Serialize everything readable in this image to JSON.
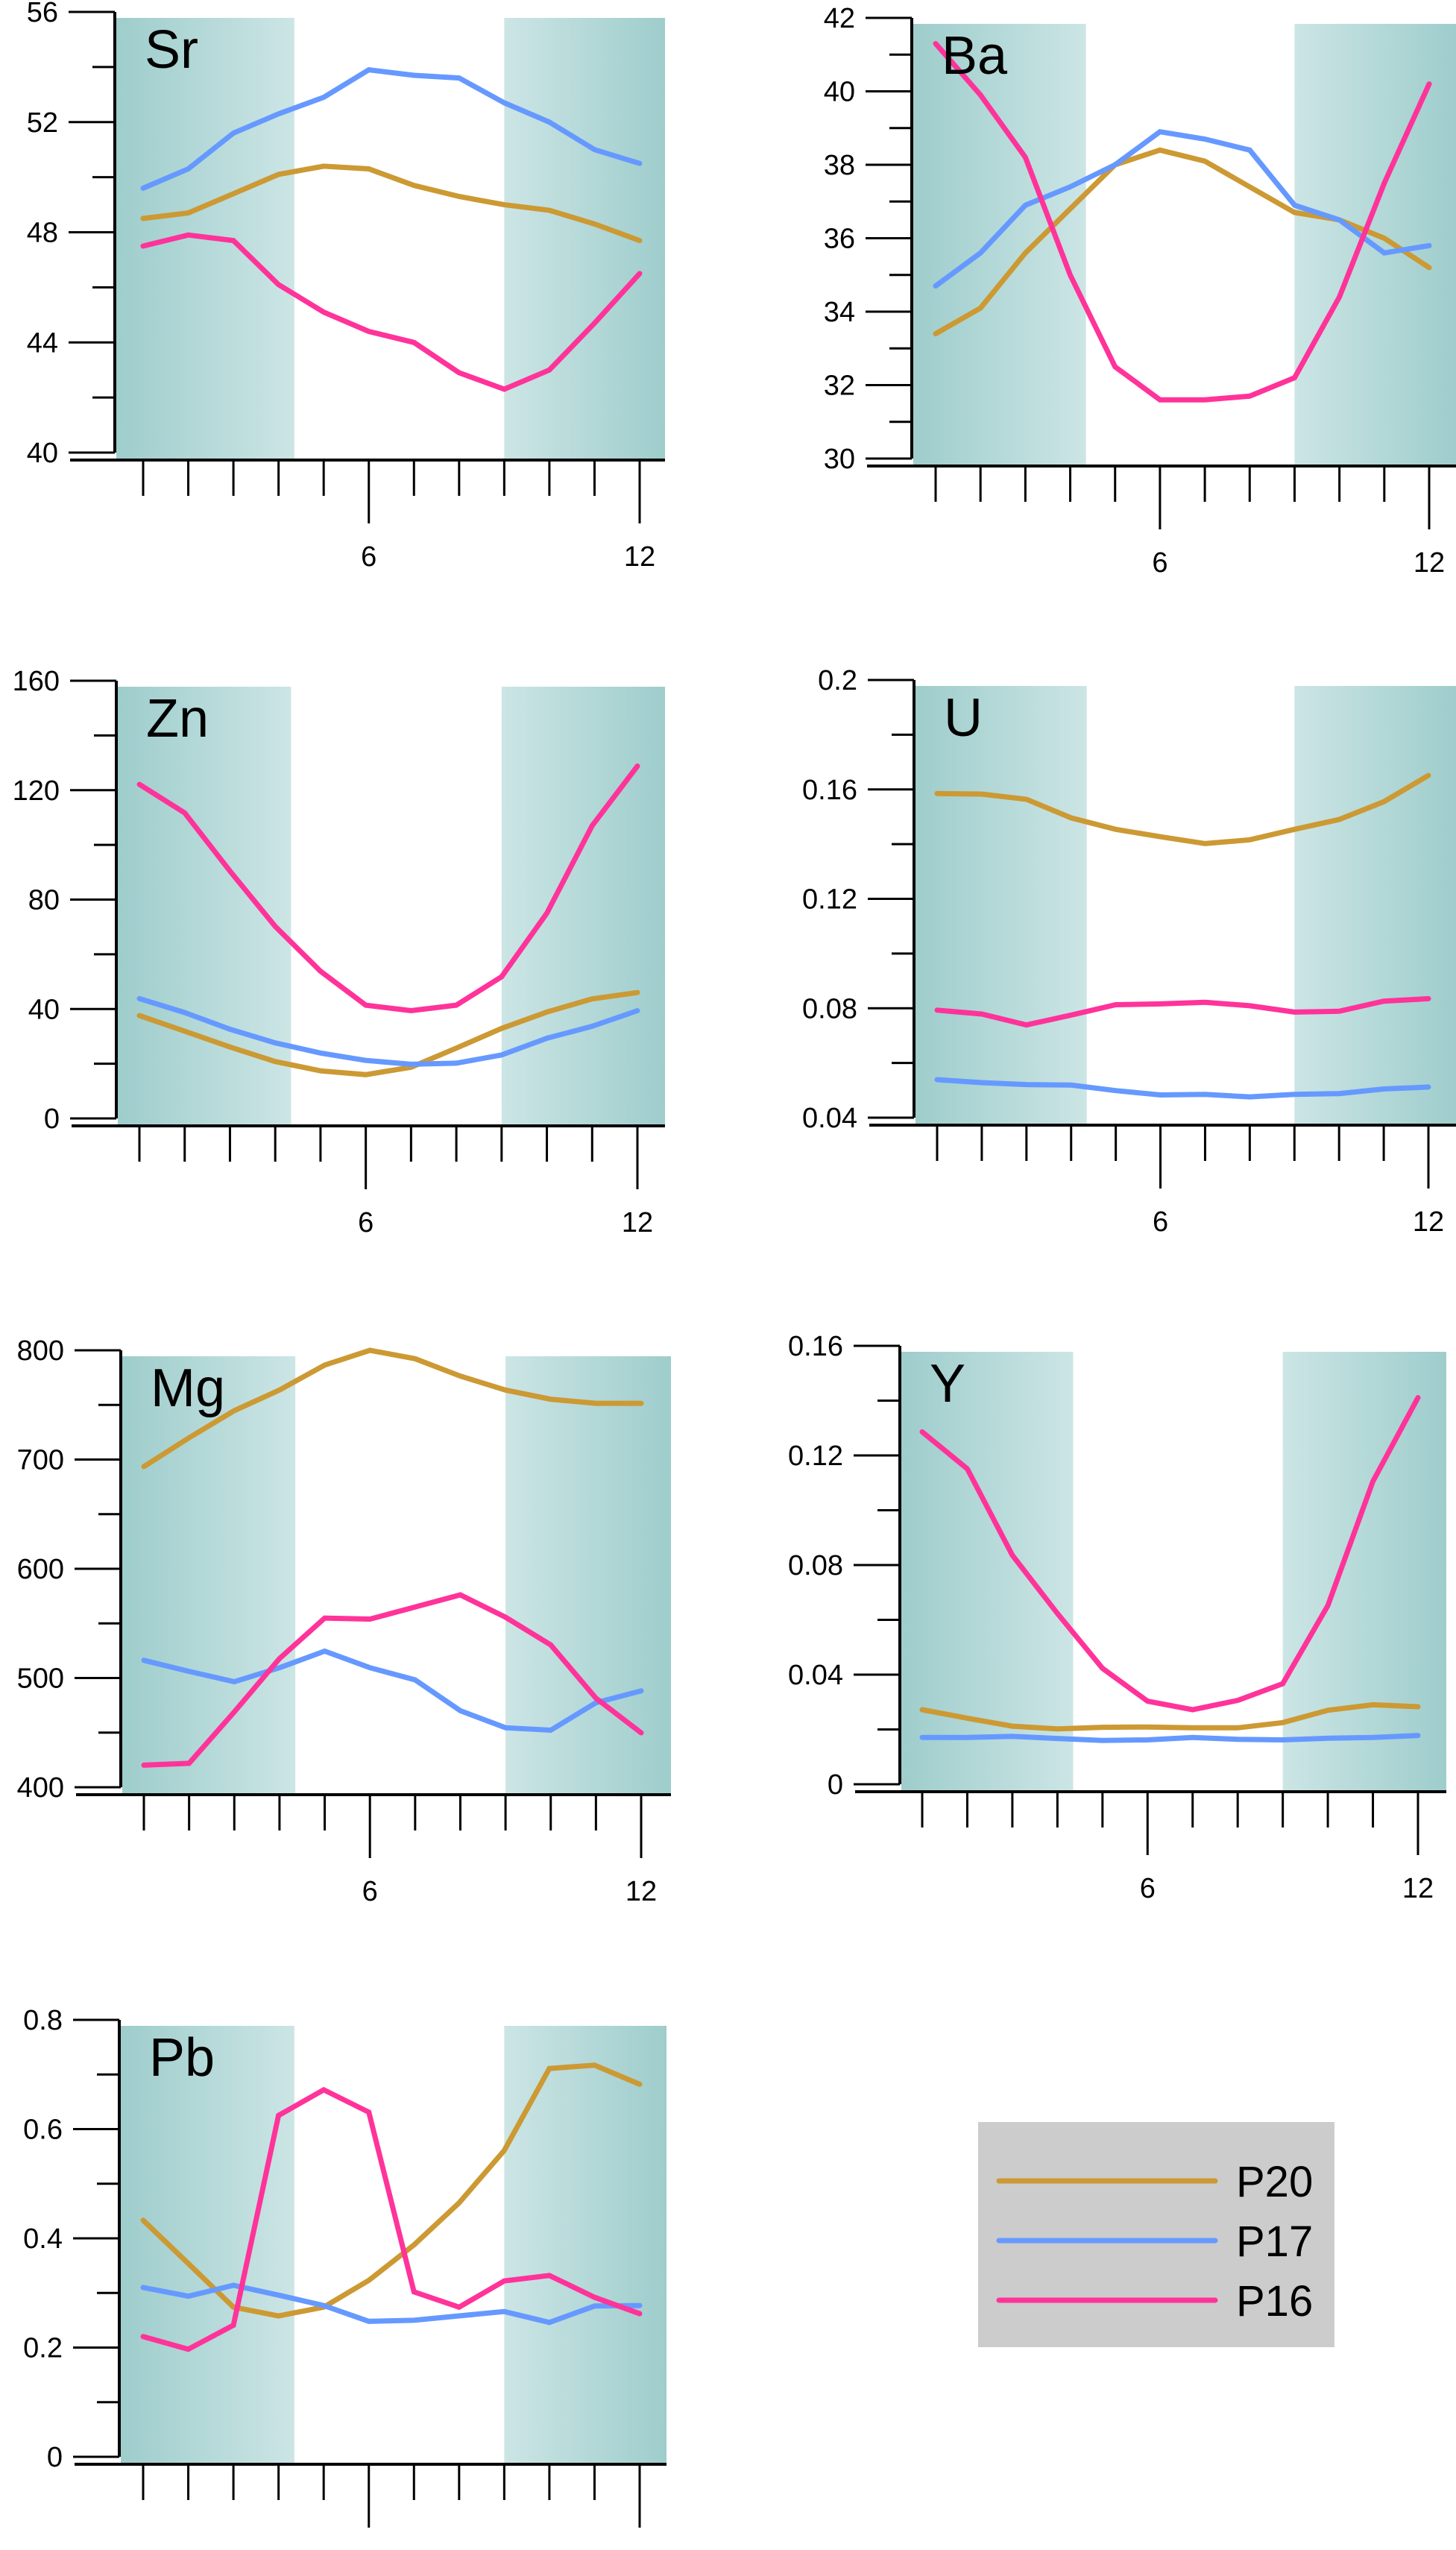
{
  "chart_data": {
    "type": "line",
    "x": [
      1,
      2,
      3,
      4,
      5,
      6,
      7,
      8,
      9,
      10,
      11,
      12
    ],
    "xticks": [
      {
        "value": 6,
        "label": "6"
      },
      {
        "value": 12,
        "label": "12"
      }
    ],
    "shaded_x_ranges": [
      [
        0.6,
        4.35
      ],
      [
        9.0,
        12.5
      ]
    ],
    "legend": {
      "position": "bottom-right",
      "entries": [
        {
          "name": "P20",
          "color": "#CC9933"
        },
        {
          "name": "P17",
          "color": "#6699FF"
        },
        {
          "name": "P16",
          "color": "#FF3399"
        }
      ]
    },
    "panels": [
      {
        "title": "Sr",
        "ylim": [
          40,
          56
        ],
        "yticks": [
          40,
          44,
          48,
          52,
          56
        ],
        "ytick_labels": [
          "40",
          "44",
          "48",
          "52",
          "56"
        ],
        "minor_step": 2,
        "series": [
          {
            "name": "P20",
            "values": [
              48.5,
              48.7,
              49.4,
              50.1,
              50.4,
              50.3,
              49.7,
              49.3,
              49.0,
              48.8,
              48.3,
              47.7
            ]
          },
          {
            "name": "P17",
            "values": [
              49.6,
              50.3,
              51.6,
              52.3,
              52.9,
              53.9,
              53.7,
              53.6,
              52.7,
              52.0,
              51.0,
              50.5
            ]
          },
          {
            "name": "P16",
            "values": [
              47.5,
              47.9,
              47.7,
              46.1,
              45.1,
              44.4,
              44.0,
              42.9,
              42.3,
              43.0,
              44.7,
              46.5
            ]
          }
        ]
      },
      {
        "title": "Ba",
        "ylim": [
          30,
          42
        ],
        "yticks": [
          30,
          32,
          34,
          36,
          38,
          40,
          42
        ],
        "ytick_labels": [
          "30",
          "32",
          "34",
          "36",
          "38",
          "40",
          "42"
        ],
        "minor_step": 1,
        "series": [
          {
            "name": "P20",
            "values": [
              33.4,
              34.1,
              35.6,
              36.8,
              38.0,
              38.4,
              38.1,
              37.4,
              36.7,
              36.5,
              36.0,
              35.2
            ]
          },
          {
            "name": "P17",
            "values": [
              34.7,
              35.6,
              36.9,
              37.4,
              38.0,
              38.9,
              38.7,
              38.4,
              36.9,
              36.5,
              35.6,
              35.8
            ]
          },
          {
            "name": "P16",
            "values": [
              41.3,
              39.9,
              38.2,
              35.0,
              32.5,
              31.6,
              31.6,
              31.7,
              32.2,
              34.4,
              37.5,
              40.2
            ]
          }
        ]
      },
      {
        "title": "Zn",
        "ylim": [
          0,
          160
        ],
        "yticks": [
          0,
          40,
          80,
          120,
          160
        ],
        "ytick_labels": [
          "0",
          "40",
          "80",
          "120",
          "160"
        ],
        "minor_step": 20,
        "series": [
          {
            "name": "P20",
            "values": [
              37.6,
              31.9,
              26.1,
              20.8,
              17.4,
              16.0,
              18.7,
              25.7,
              32.9,
              38.9,
              43.7,
              46.0
            ]
          },
          {
            "name": "P17",
            "values": [
              43.8,
              38.7,
              32.6,
              27.6,
              23.9,
              21.2,
              19.8,
              20.2,
              23.2,
              29.3,
              33.7,
              39.4
            ]
          },
          {
            "name": "P16",
            "values": [
              122.1,
              111.7,
              90.4,
              70.2,
              53.8,
              41.4,
              39.4,
              41.4,
              51.8,
              75.0,
              107.0,
              128.8
            ]
          }
        ]
      },
      {
        "title": "U",
        "ylim": [
          0.04,
          0.2
        ],
        "yticks": [
          0.04,
          0.08,
          0.12,
          0.16,
          0.2
        ],
        "ytick_labels": [
          "0.04",
          "0.08",
          "0.12",
          "0.16",
          "0.2"
        ],
        "minor_step": 0.02,
        "series": [
          {
            "name": "P20",
            "values": [
              0.1585,
              0.1583,
              0.1564,
              0.1496,
              0.1454,
              0.1427,
              0.1402,
              0.1416,
              0.1454,
              0.149,
              0.1555,
              0.1651
            ]
          },
          {
            "name": "P17",
            "values": [
              0.0539,
              0.0528,
              0.0521,
              0.0519,
              0.0499,
              0.0483,
              0.0485,
              0.0476,
              0.0485,
              0.0488,
              0.0505,
              0.0512
            ]
          },
          {
            "name": "P16",
            "values": [
              0.0793,
              0.0779,
              0.0739,
              0.0775,
              0.0813,
              0.0816,
              0.0822,
              0.0809,
              0.0786,
              0.0789,
              0.0826,
              0.0835
            ]
          }
        ]
      },
      {
        "title": "Mg",
        "ylim": [
          400,
          800
        ],
        "yticks": [
          400,
          500,
          600,
          700,
          800
        ],
        "ytick_labels": [
          "400",
          "500",
          "600",
          "700",
          "800"
        ],
        "minor_step": 50,
        "series": [
          {
            "name": "P20",
            "values": [
              693.6,
              719.9,
              744.8,
              763.6,
              786.5,
              800.0,
              792.3,
              776.4,
              763.6,
              755.2,
              751.5,
              751.5
            ]
          },
          {
            "name": "P17",
            "values": [
              516.2,
              506.1,
              496.6,
              509.4,
              524.6,
              509.4,
              498.3,
              470.0,
              454.5,
              452.2,
              477.4,
              488.2
            ]
          },
          {
            "name": "P16",
            "values": [
              420.2,
              421.9,
              469.0,
              517.8,
              554.9,
              553.9,
              565.0,
              576.1,
              555.6,
              530.3,
              481.5,
              449.8
            ]
          }
        ]
      },
      {
        "title": "Y",
        "ylim": [
          0,
          0.16
        ],
        "yticks": [
          0,
          0.04,
          0.08,
          0.12,
          0.16
        ],
        "ytick_labels": [
          "0",
          "0.04",
          "0.08",
          "0.12",
          "0.16"
        ],
        "minor_step": 0.02,
        "series": [
          {
            "name": "P20",
            "values": [
              0.0272,
              0.0241,
              0.0212,
              0.0202,
              0.0208,
              0.0209,
              0.0206,
              0.0206,
              0.0225,
              0.027,
              0.029,
              0.0283
            ]
          },
          {
            "name": "P17",
            "values": [
              0.0171,
              0.0171,
              0.0175,
              0.0167,
              0.016,
              0.0162,
              0.0171,
              0.0164,
              0.0162,
              0.0168,
              0.0171,
              0.0178
            ]
          },
          {
            "name": "P16",
            "values": [
              0.1286,
              0.1151,
              0.0836,
              0.0623,
              0.0423,
              0.0303,
              0.0272,
              0.0306,
              0.0367,
              0.0652,
              0.1105,
              0.1411
            ]
          }
        ]
      },
      {
        "title": "Pb",
        "ylim": [
          0,
          0.8
        ],
        "yticks": [
          0,
          0.2,
          0.4,
          0.6,
          0.8
        ],
        "ytick_labels": [
          "0",
          "0.2",
          "0.4",
          "0.6",
          "0.8"
        ],
        "minor_step": 0.1,
        "series": [
          {
            "name": "P20",
            "values": [
              0.433,
              0.354,
              0.274,
              0.258,
              0.274,
              0.323,
              0.388,
              0.465,
              0.561,
              0.711,
              0.717,
              0.682
            ]
          },
          {
            "name": "P17",
            "values": [
              0.31,
              0.294,
              0.314,
              0.296,
              0.277,
              0.248,
              0.25,
              0.258,
              0.266,
              0.246,
              0.276,
              0.277
            ]
          },
          {
            "name": "P16",
            "values": [
              0.22,
              0.197,
              0.241,
              0.625,
              0.672,
              0.631,
              0.302,
              0.274,
              0.322,
              0.332,
              0.292,
              0.262
            ]
          }
        ]
      }
    ]
  }
}
